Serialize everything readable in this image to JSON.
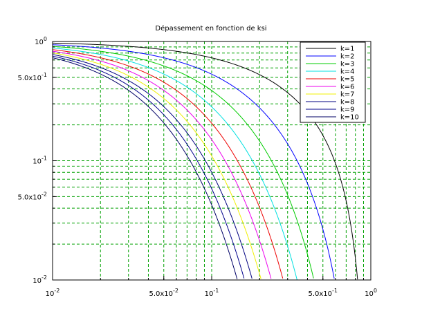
{
  "chart_data": {
    "type": "line",
    "title": "Dépassement en fonction de ksi",
    "xlabel": "",
    "ylabel": "",
    "xscale": "log",
    "yscale": "log",
    "xlim": [
      0.01,
      1
    ],
    "ylim": [
      0.01,
      1
    ],
    "grid": true,
    "grid_color": "#00a000",
    "grid_style": "dashed",
    "legend_position": "top-right",
    "x_ticks": [
      {
        "value": 0.01,
        "base": "10",
        "exp": "-2"
      },
      {
        "value": 0.05,
        "base": "5.0x10",
        "exp": "-2"
      },
      {
        "value": 0.1,
        "base": "10",
        "exp": "-1"
      },
      {
        "value": 0.5,
        "base": "5.0x10",
        "exp": "-1"
      },
      {
        "value": 1,
        "base": "10",
        "exp": "0"
      }
    ],
    "y_ticks": [
      {
        "value": 1,
        "base": "10",
        "exp": "0"
      },
      {
        "value": 0.5,
        "base": "5.0x10",
        "exp": "-1"
      },
      {
        "value": 0.1,
        "base": "10",
        "exp": "-1"
      },
      {
        "value": 0.05,
        "base": "5.0x10",
        "exp": "-2"
      },
      {
        "value": 0.01,
        "base": "10",
        "exp": "-2"
      }
    ],
    "x_minor_gridlines": [
      0.02,
      0.03,
      0.04,
      0.05,
      0.06,
      0.07,
      0.08,
      0.09,
      0.2,
      0.3,
      0.4,
      0.5,
      0.6,
      0.7,
      0.8,
      0.9
    ],
    "y_minor_gridlines": [
      0.02,
      0.03,
      0.04,
      0.05,
      0.06,
      0.07,
      0.08,
      0.09,
      0.2,
      0.3,
      0.4,
      0.5,
      0.6,
      0.7,
      0.8,
      0.9
    ],
    "series": [
      {
        "name": "k=1",
        "k": 1,
        "color": "#000000"
      },
      {
        "name": "k=2",
        "k": 2,
        "color": "#0000ff"
      },
      {
        "name": "k=3",
        "k": 3,
        "color": "#00cc00"
      },
      {
        "name": "k=4",
        "k": 4,
        "color": "#00e0e0"
      },
      {
        "name": "k=5",
        "k": 5,
        "color": "#ee0000"
      },
      {
        "name": "k=6",
        "k": 6,
        "color": "#ee00ee"
      },
      {
        "name": "k=7",
        "k": 7,
        "color": "#f0f000"
      },
      {
        "name": "k=8",
        "k": 8,
        "color": "#000080"
      },
      {
        "name": "k=9",
        "k": 9,
        "color": "#00008b"
      },
      {
        "name": "k=10",
        "k": 10,
        "color": "#000066"
      }
    ]
  }
}
